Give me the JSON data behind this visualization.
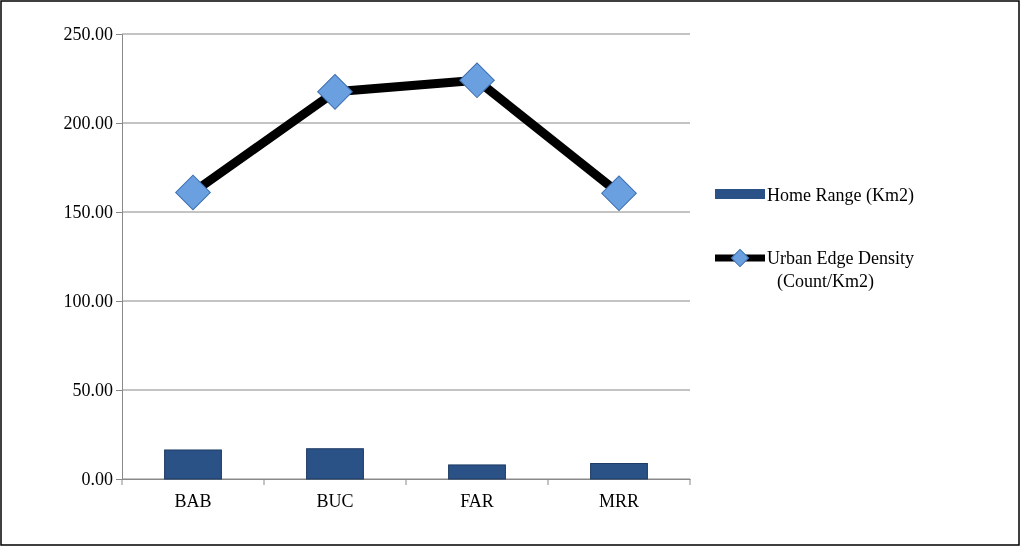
{
  "chart_data": {
    "type": "bar",
    "categories": [
      "BAB",
      "BUC",
      "FAR",
      "MRR"
    ],
    "series": [
      {
        "name": "Home Range (Km2)",
        "color": "#2b5287",
        "values": [
          16.3,
          17,
          7.9,
          8.7
        ]
      },
      {
        "name": "Urban Edge Density (Count/Km2)",
        "type": "line",
        "color": "#000000",
        "values": [
          161,
          217.5,
          224,
          160.5
        ],
        "marker": "diamond"
      }
    ],
    "ylim": [
      0,
      250
    ],
    "yticks": [
      {
        "value": 0,
        "label": "0.00"
      },
      {
        "value": 50,
        "label": "50.00"
      },
      {
        "value": 100,
        "label": "100.00"
      },
      {
        "value": 150,
        "label": "150.00"
      },
      {
        "value": 200,
        "label": "200.00"
      },
      {
        "value": 250,
        "label": "250.00"
      }
    ],
    "grid": "y",
    "legend": "right"
  }
}
